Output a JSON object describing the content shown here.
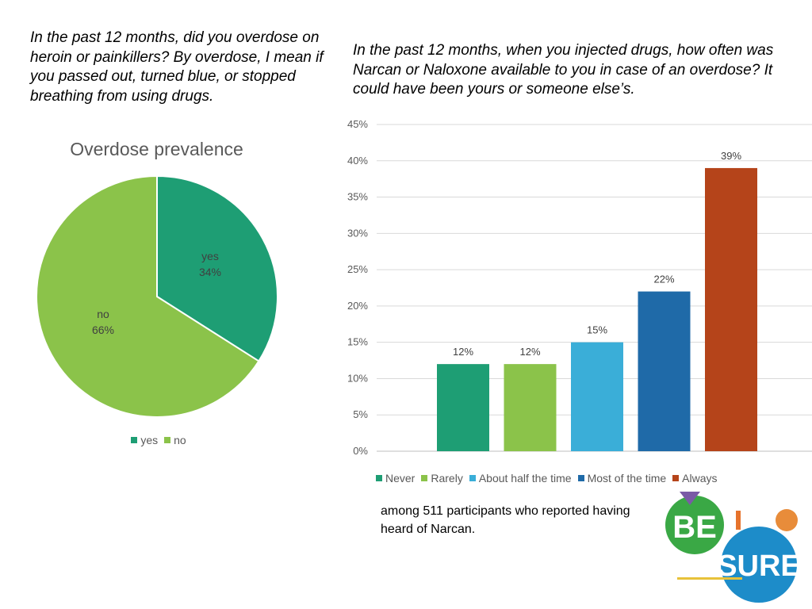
{
  "question_left": "In the past 12 months, did you overdose on heroin or painkillers?  By overdose, I mean if you passed out, turned blue, or stopped breathing from using drugs.",
  "question_right": "In the past 12 months, when you injected drugs, how often was Narcan or Naloxone available to you in case of an overdose? It could have been yours or someone else’s.",
  "note": "among 511 participants who reported having heard of Narcan.",
  "logo": {
    "text_top": "BE",
    "text_bottom": "SURE"
  },
  "chart_data": [
    {
      "type": "pie",
      "title": "Overdose prevalence",
      "categories": [
        "yes",
        "no"
      ],
      "values": [
        34,
        66
      ],
      "data_labels": [
        "34%",
        "66%"
      ],
      "colors": [
        "#1e9e74",
        "#8bc34a"
      ],
      "legend": "bottom"
    },
    {
      "type": "bar",
      "title": "",
      "categories": [
        "Never",
        "Rarely",
        "About half the time",
        "Most of the time",
        "Always"
      ],
      "values": [
        12,
        12,
        15,
        22,
        39
      ],
      "data_labels": [
        "12%",
        "12%",
        "15%",
        "22%",
        "39%"
      ],
      "colors": [
        "#1e9e74",
        "#8bc34a",
        "#3aaed8",
        "#1f6aa8",
        "#b5441a"
      ],
      "ylim": [
        0,
        45
      ],
      "yticks": [
        "0%",
        "5%",
        "10%",
        "15%",
        "20%",
        "25%",
        "30%",
        "35%",
        "40%",
        "45%"
      ],
      "grid": true,
      "legend": "bottom"
    }
  ]
}
